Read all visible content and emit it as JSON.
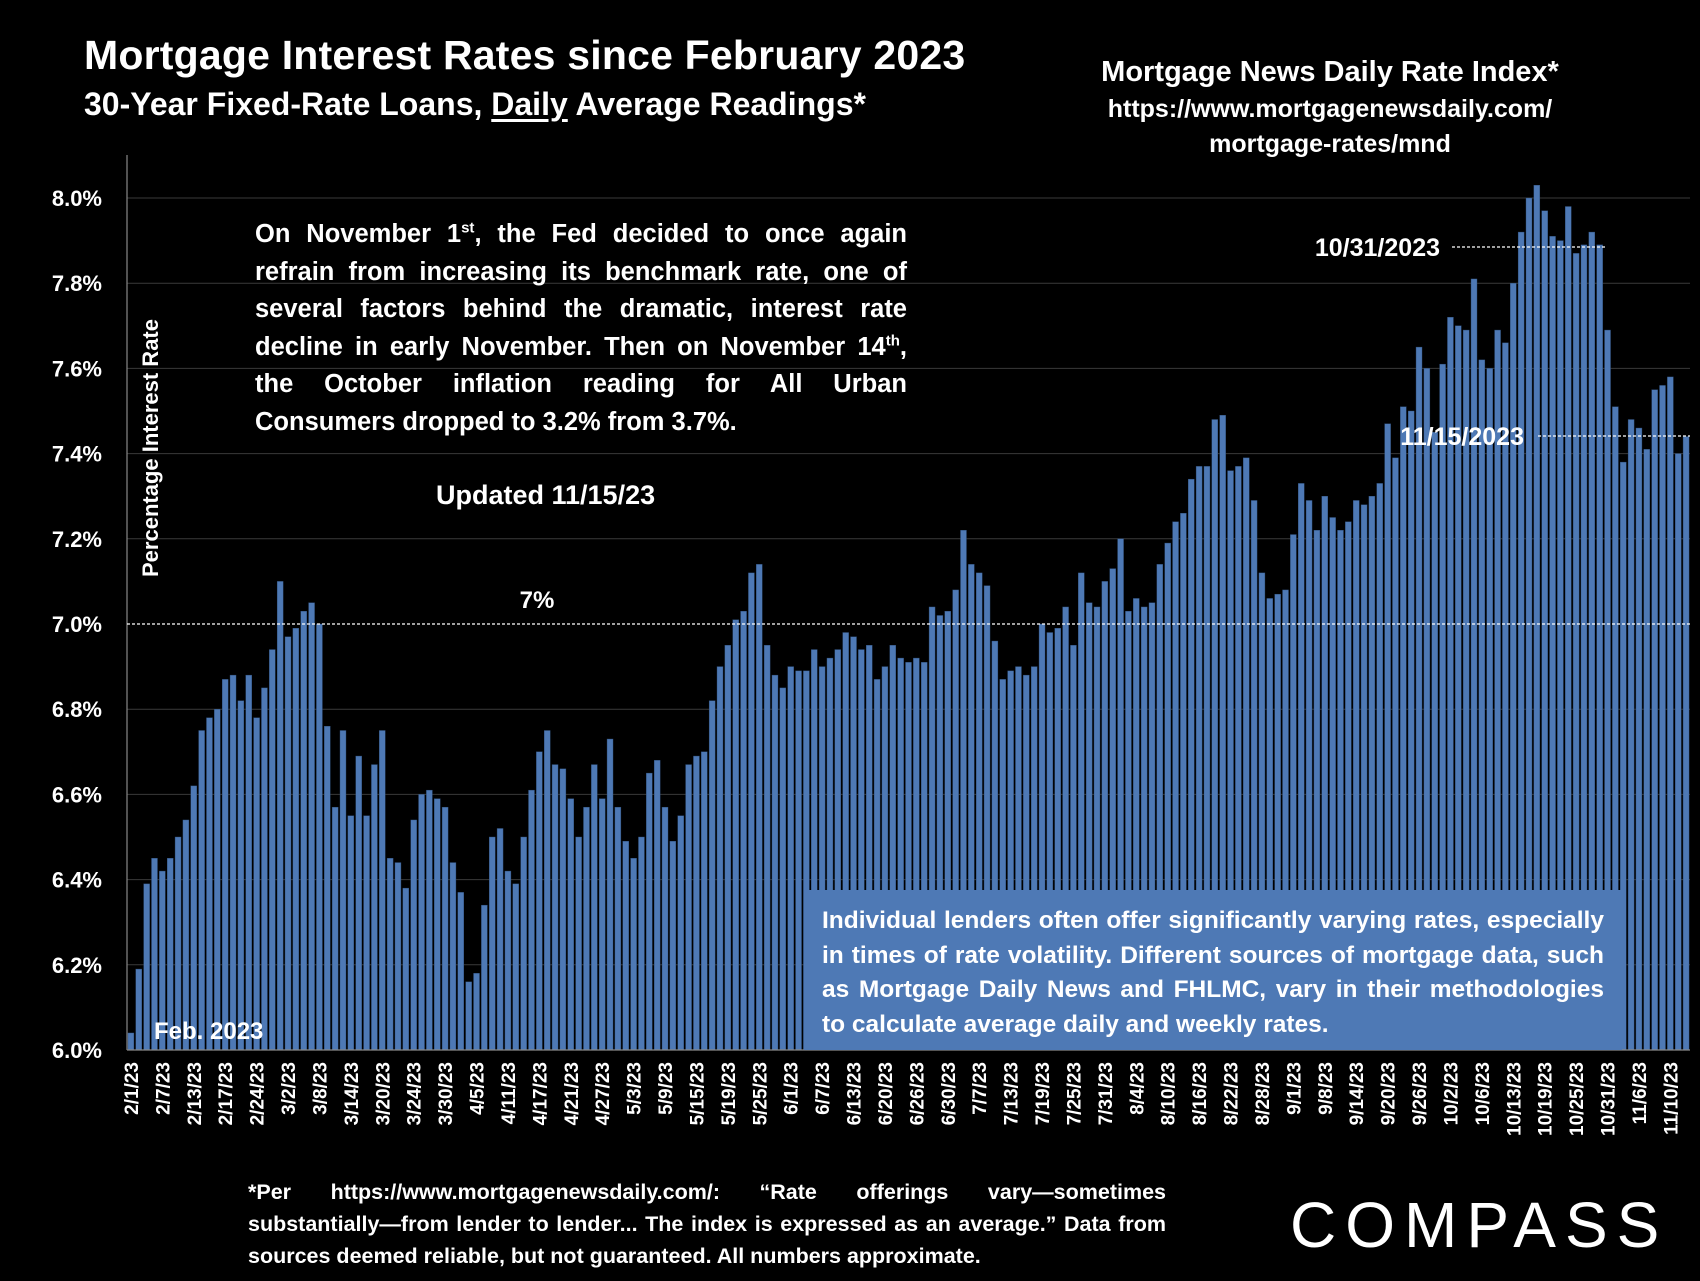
{
  "title": "Mortgage Interest Rates since February 2023",
  "subtitle_pre": "30-Year Fixed-Rate Loans, ",
  "subtitle_underlined": "Daily",
  "subtitle_post": " Average Readings*",
  "source": {
    "line1": "Mortgage News Daily Rate Index*",
    "line2": "https://www.mortgagenewsdaily.com/",
    "line3": "mortgage-rates/mnd"
  },
  "annotation": {
    "part1": "On November 1",
    "sup1": "st",
    "part2": ", the Fed decided to once again refrain from increasing its benchmark rate, one of several factors behind the dramatic,  interest rate decline in early November. Then on November 14",
    "sup2": "th",
    "part3": ", the October inflation reading for All Urban Consumers dropped to 3.2% from 3.7%."
  },
  "updated": "Updated 11/15/23",
  "lenders_note": "Individual lenders often offer significantly varying rates, especially in times of rate volatility. Different sources of mortgage data, such as Mortgage Daily News and FHLMC, vary in their methodologies to calculate average daily and weekly rates.",
  "footnote": "*Per https://www.mortgagenewsdaily.com/: “Rate offerings vary—sometimes substantially—from lender to lender... The index is expressed as an average.” Data from sources deemed reliable, but not guaranteed. All numbers approximate.",
  "logo": "COMPASS",
  "colors": {
    "background": "#000000",
    "bar": "#4e79b5",
    "bar_edge": "#2f4f7a",
    "text": "#ffffff",
    "box": "#4e79b5"
  },
  "chart_data": {
    "type": "bar",
    "title": "Mortgage Interest Rates since February 2023",
    "ylabel": "Percentage Interest  Rate",
    "xlabel": "",
    "ylim": [
      6.0,
      8.1
    ],
    "yticks": [
      6.0,
      6.2,
      6.4,
      6.6,
      6.8,
      7.0,
      7.2,
      7.4,
      7.6,
      7.8,
      8.0
    ],
    "ytick_labels": [
      "6.0%",
      "6.2%",
      "6.4%",
      "6.6%",
      "6.8%",
      "7.0%",
      "7.2%",
      "7.4%",
      "7.6%",
      "7.8%",
      "8.0%"
    ],
    "xtick_labels": [
      "2/1/23",
      "2/7/23",
      "2/13/23",
      "2/17/23",
      "2/24/23",
      "3/2/23",
      "3/8/23",
      "3/14/23",
      "3/20/23",
      "3/24/23",
      "3/30/23",
      "4/5/23",
      "4/11/23",
      "4/17/23",
      "4/21/23",
      "4/27/23",
      "5/3/23",
      "5/9/23",
      "5/15/23",
      "5/19/23",
      "5/25/23",
      "6/1/23",
      "6/7/23",
      "6/13/23",
      "6/20/23",
      "6/26/23",
      "6/30/23",
      "7/7/23",
      "7/13/23",
      "7/19/23",
      "7/25/23",
      "7/31/23",
      "8/4/23",
      "8/10/23",
      "8/16/23",
      "8/22/23",
      "8/28/23",
      "9/1/23",
      "9/8/23",
      "9/14/23",
      "9/20/23",
      "9/26/23",
      "10/2/23",
      "10/6/23",
      "10/13/23",
      "10/19/23",
      "10/25/23",
      "10/31/23",
      "11/6/23",
      "11/10/23"
    ],
    "xtick_every": 4,
    "gridlines": true,
    "values": [
      6.04,
      6.19,
      6.39,
      6.45,
      6.42,
      6.45,
      6.5,
      6.54,
      6.62,
      6.75,
      6.78,
      6.8,
      6.87,
      6.88,
      6.82,
      6.88,
      6.78,
      6.85,
      6.94,
      7.1,
      6.97,
      6.99,
      7.03,
      7.05,
      7.0,
      6.76,
      6.57,
      6.75,
      6.55,
      6.69,
      6.55,
      6.67,
      6.75,
      6.45,
      6.44,
      6.38,
      6.54,
      6.6,
      6.61,
      6.59,
      6.57,
      6.44,
      6.37,
      6.16,
      6.18,
      6.34,
      6.5,
      6.52,
      6.42,
      6.39,
      6.5,
      6.61,
      6.7,
      6.75,
      6.67,
      6.66,
      6.59,
      6.5,
      6.57,
      6.67,
      6.59,
      6.73,
      6.57,
      6.49,
      6.45,
      6.5,
      6.65,
      6.68,
      6.57,
      6.49,
      6.55,
      6.67,
      6.69,
      6.7,
      6.82,
      6.9,
      6.95,
      7.01,
      7.03,
      7.12,
      7.14,
      6.95,
      6.88,
      6.85,
      6.9,
      6.89,
      6.89,
      6.94,
      6.9,
      6.92,
      6.94,
      6.98,
      6.97,
      6.94,
      6.95,
      6.87,
      6.9,
      6.95,
      6.92,
      6.91,
      6.92,
      6.91,
      7.04,
      7.02,
      7.03,
      7.08,
      7.22,
      7.14,
      7.12,
      7.09,
      6.96,
      6.87,
      6.89,
      6.9,
      6.88,
      6.9,
      7.0,
      6.98,
      6.99,
      7.04,
      6.95,
      7.12,
      7.05,
      7.04,
      7.1,
      7.13,
      7.2,
      7.03,
      7.06,
      7.04,
      7.05,
      7.14,
      7.19,
      7.24,
      7.26,
      7.34,
      7.37,
      7.37,
      7.48,
      7.49,
      7.36,
      7.37,
      7.39,
      7.29,
      7.12,
      7.06,
      7.07,
      7.08,
      7.21,
      7.33,
      7.29,
      7.22,
      7.3,
      7.25,
      7.22,
      7.24,
      7.29,
      7.28,
      7.3,
      7.33,
      7.47,
      7.39,
      7.51,
      7.5,
      7.65,
      7.6,
      7.45,
      7.61,
      7.72,
      7.7,
      7.69,
      7.81,
      7.62,
      7.6,
      7.69,
      7.66,
      7.8,
      7.92,
      8.0,
      8.03,
      7.97,
      7.91,
      7.9,
      7.98,
      7.87,
      7.89,
      7.92,
      7.89,
      7.69,
      7.51,
      7.38,
      7.48,
      7.46,
      7.41,
      7.55,
      7.56,
      7.58,
      7.4,
      7.44
    ],
    "reference_lines": [
      {
        "value": 7.0,
        "label": "7%"
      },
      {
        "value": 7.89,
        "label": "10/31/2023"
      },
      {
        "value": 7.44,
        "label": "11/15/2023"
      }
    ],
    "annotations": [
      "Feb. 2023"
    ]
  }
}
